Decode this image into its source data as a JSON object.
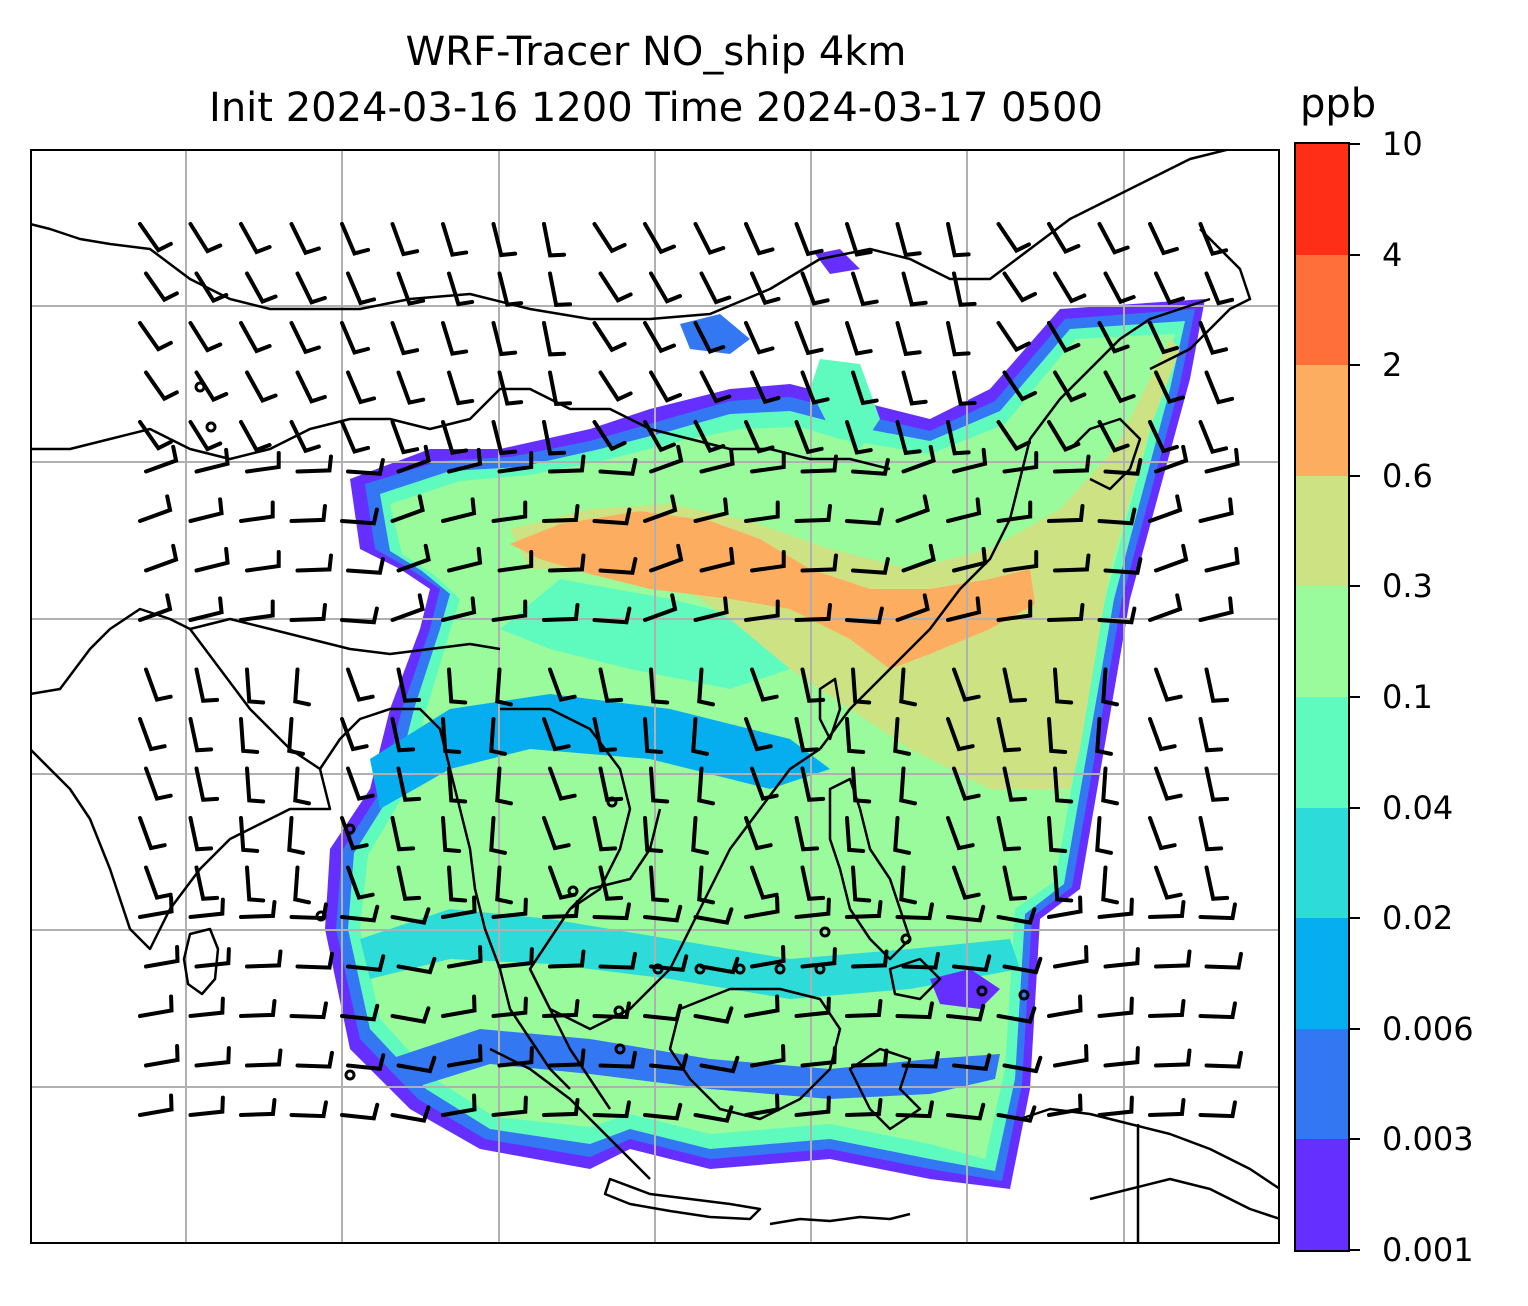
{
  "title": {
    "line1": "WRF-Tracer NO_ship 4km",
    "line2": "Init 2024-03-16 1200 Time 2024-03-17 0500"
  },
  "colorbar": {
    "unit": "ppb",
    "levels": [
      "0.001",
      "0.003",
      "0.006",
      "0.02",
      "0.04",
      "0.1",
      "0.3",
      "0.6",
      "2",
      "4",
      "10"
    ],
    "colors": [
      "#6530ff",
      "#3477f2",
      "#06aeef",
      "#2ddcd8",
      "#5ffbbe",
      "#99fb9c",
      "#cde283",
      "#fdad60",
      "#fe6f3a",
      "#ff2e17"
    ]
  },
  "map": {
    "coastline_color": "#000000",
    "gridline_color": "#b0b0b0",
    "field_colors": {
      "very_low": "#6530ff",
      "low": "#3477f2",
      "mid_low": "#06aeef",
      "mid": "#5ffbbe",
      "moderate": "#99fb9c",
      "high": "#cde283",
      "very_high": "#fdad60"
    }
  }
}
